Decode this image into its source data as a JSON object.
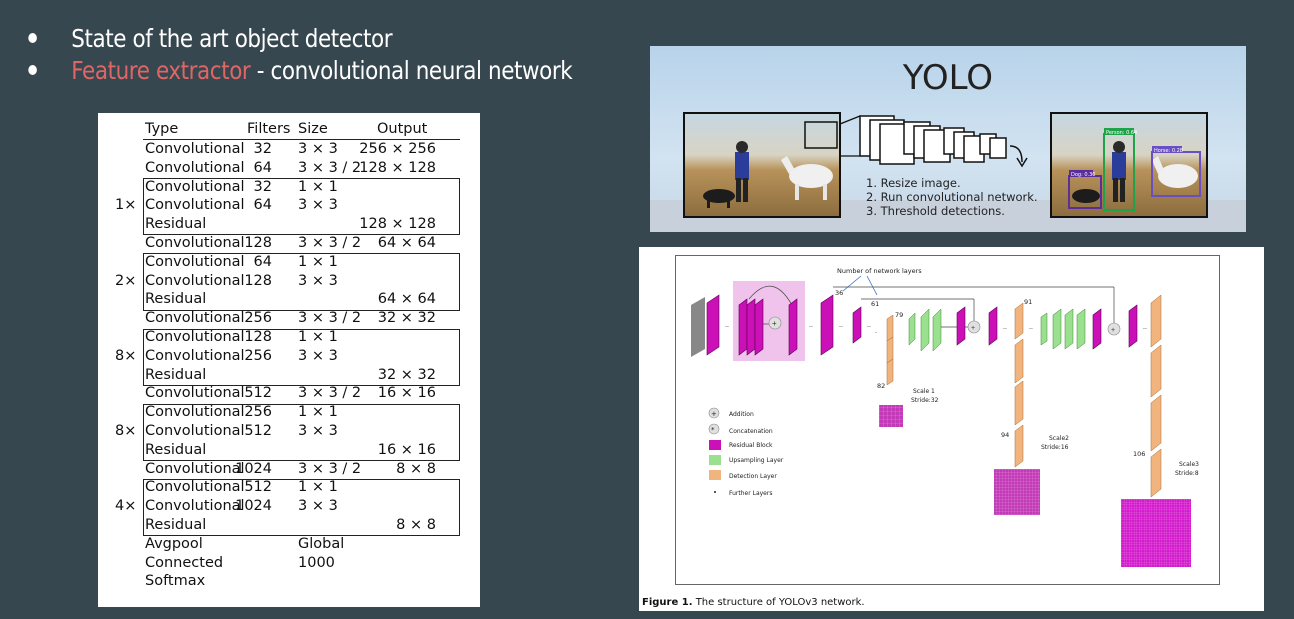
{
  "bullets": [
    {
      "text": "State of the art object detector"
    },
    {
      "highlight": "Feature extractor",
      "rest": " - convolutional neural network"
    }
  ],
  "colors": {
    "background": "#37474f",
    "highlight": "#e06666"
  },
  "darknet": {
    "headers": {
      "type": "Type",
      "filters": "Filters",
      "size": "Size",
      "output": "Output"
    },
    "rows": [
      {
        "type": "Convolutional",
        "filters": "32",
        "size": "3 × 3",
        "output": "256 × 256"
      },
      {
        "type": "Convolutional",
        "filters": "64",
        "size": "3 × 3 / 2",
        "output": "128 × 128"
      },
      {
        "type": "Convolutional",
        "filters": "32",
        "size": "1 × 1",
        "output": ""
      },
      {
        "type": "Convolutional",
        "filters": "64",
        "size": "3 × 3",
        "output": ""
      },
      {
        "type": "Residual",
        "filters": "",
        "size": "",
        "output": "128 × 128"
      },
      {
        "type": "Convolutional",
        "filters": "128",
        "size": "3 × 3 / 2",
        "output": "64 × 64"
      },
      {
        "type": "Convolutional",
        "filters": "64",
        "size": "1 × 1",
        "output": ""
      },
      {
        "type": "Convolutional",
        "filters": "128",
        "size": "3 × 3",
        "output": ""
      },
      {
        "type": "Residual",
        "filters": "",
        "size": "",
        "output": "64 × 64"
      },
      {
        "type": "Convolutional",
        "filters": "256",
        "size": "3 × 3 / 2",
        "output": "32 × 32"
      },
      {
        "type": "Convolutional",
        "filters": "128",
        "size": "1 × 1",
        "output": ""
      },
      {
        "type": "Convolutional",
        "filters": "256",
        "size": "3 × 3",
        "output": ""
      },
      {
        "type": "Residual",
        "filters": "",
        "size": "",
        "output": "32 × 32"
      },
      {
        "type": "Convolutional",
        "filters": "512",
        "size": "3 × 3 / 2",
        "output": "16 × 16"
      },
      {
        "type": "Convolutional",
        "filters": "256",
        "size": "1 × 1",
        "output": ""
      },
      {
        "type": "Convolutional",
        "filters": "512",
        "size": "3 × 3",
        "output": ""
      },
      {
        "type": "Residual",
        "filters": "",
        "size": "",
        "output": "16 × 16"
      },
      {
        "type": "Convolutional",
        "filters": "1024",
        "size": "3 × 3 / 2",
        "output": "8 × 8"
      },
      {
        "type": "Convolutional",
        "filters": "512",
        "size": "1 × 1",
        "output": ""
      },
      {
        "type": "Convolutional",
        "filters": "1024",
        "size": "3 × 3",
        "output": ""
      },
      {
        "type": "Residual",
        "filters": "",
        "size": "",
        "output": "8 × 8"
      },
      {
        "type": "Avgpool",
        "filters": "",
        "size": "Global",
        "output": ""
      },
      {
        "type": "Connected",
        "filters": "",
        "size": "1000",
        "output": ""
      },
      {
        "type": "Softmax",
        "filters": "",
        "size": "",
        "output": ""
      }
    ],
    "blocks": [
      {
        "multiplier": "1×",
        "first_row": 2
      },
      {
        "multiplier": "2×",
        "first_row": 6
      },
      {
        "multiplier": "8×",
        "first_row": 10
      },
      {
        "multiplier": "8×",
        "first_row": 14
      },
      {
        "multiplier": "4×",
        "first_row": 18
      }
    ]
  },
  "yolo": {
    "title": "YOLO",
    "steps": [
      "1. Resize image.",
      "2. Run convolutional network.",
      "3. Threshold detections."
    ],
    "detections": [
      {
        "label": "Person: 0.64",
        "color": "#1fa34a"
      },
      {
        "label": "Dog: 0.30",
        "color": "#5b2d9c"
      },
      {
        "label": "Horse: 0.28",
        "color": "#6a4fc2"
      }
    ]
  },
  "yolov3": {
    "header_label": "Number of network layers",
    "layer_numbers": [
      "36",
      "61",
      "79",
      "91",
      "82",
      "94",
      "106"
    ],
    "scales": [
      {
        "name": "Scale 1",
        "stride": "Stride:32"
      },
      {
        "name": "Scale2",
        "stride": "Stride:16"
      },
      {
        "name": "Scale3",
        "stride": "Stride:8"
      }
    ],
    "legend": [
      "Addition",
      "Concatenation",
      "Residual Block",
      "Upsampling Layer",
      "Detection Layer",
      "Further Layers"
    ],
    "colors": {
      "residual": "#cc10b8",
      "upsampling": "#9ae08e",
      "detection": "#f2b47e",
      "grid": "#c23ab7"
    },
    "caption_label": "Figure 1.",
    "caption": "The structure of YOLOv3 network."
  }
}
